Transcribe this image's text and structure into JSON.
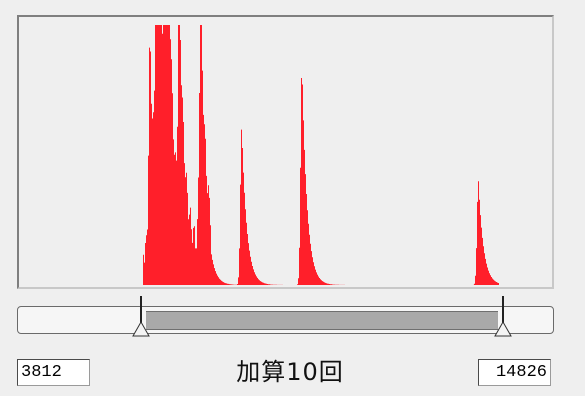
{
  "histogram": {
    "fill_color": "#ff1f2a",
    "frame_background": "#efefef"
  },
  "range": {
    "min_value": "3812",
    "max_value": "14826",
    "caption": "加算10回",
    "selected_start_fraction": 0.23,
    "selected_end_fraction": 0.905
  },
  "chart_data": {
    "type": "bar",
    "title": "",
    "xlabel": "",
    "ylabel": "",
    "series": [
      {
        "peaks": [
          {
            "x": 0.245,
            "height": 0.8
          },
          {
            "x": 0.257,
            "height": 0.86
          },
          {
            "x": 0.262,
            "height": 0.75
          },
          {
            "x": 0.273,
            "height": 0.92
          },
          {
            "x": 0.279,
            "height": 0.6
          },
          {
            "x": 0.3,
            "height": 0.87
          },
          {
            "x": 0.34,
            "height": 0.96
          },
          {
            "x": 0.417,
            "height": 0.6
          },
          {
            "x": 0.53,
            "height": 0.84
          },
          {
            "x": 0.861,
            "height": 0.4
          }
        ]
      }
    ]
  }
}
